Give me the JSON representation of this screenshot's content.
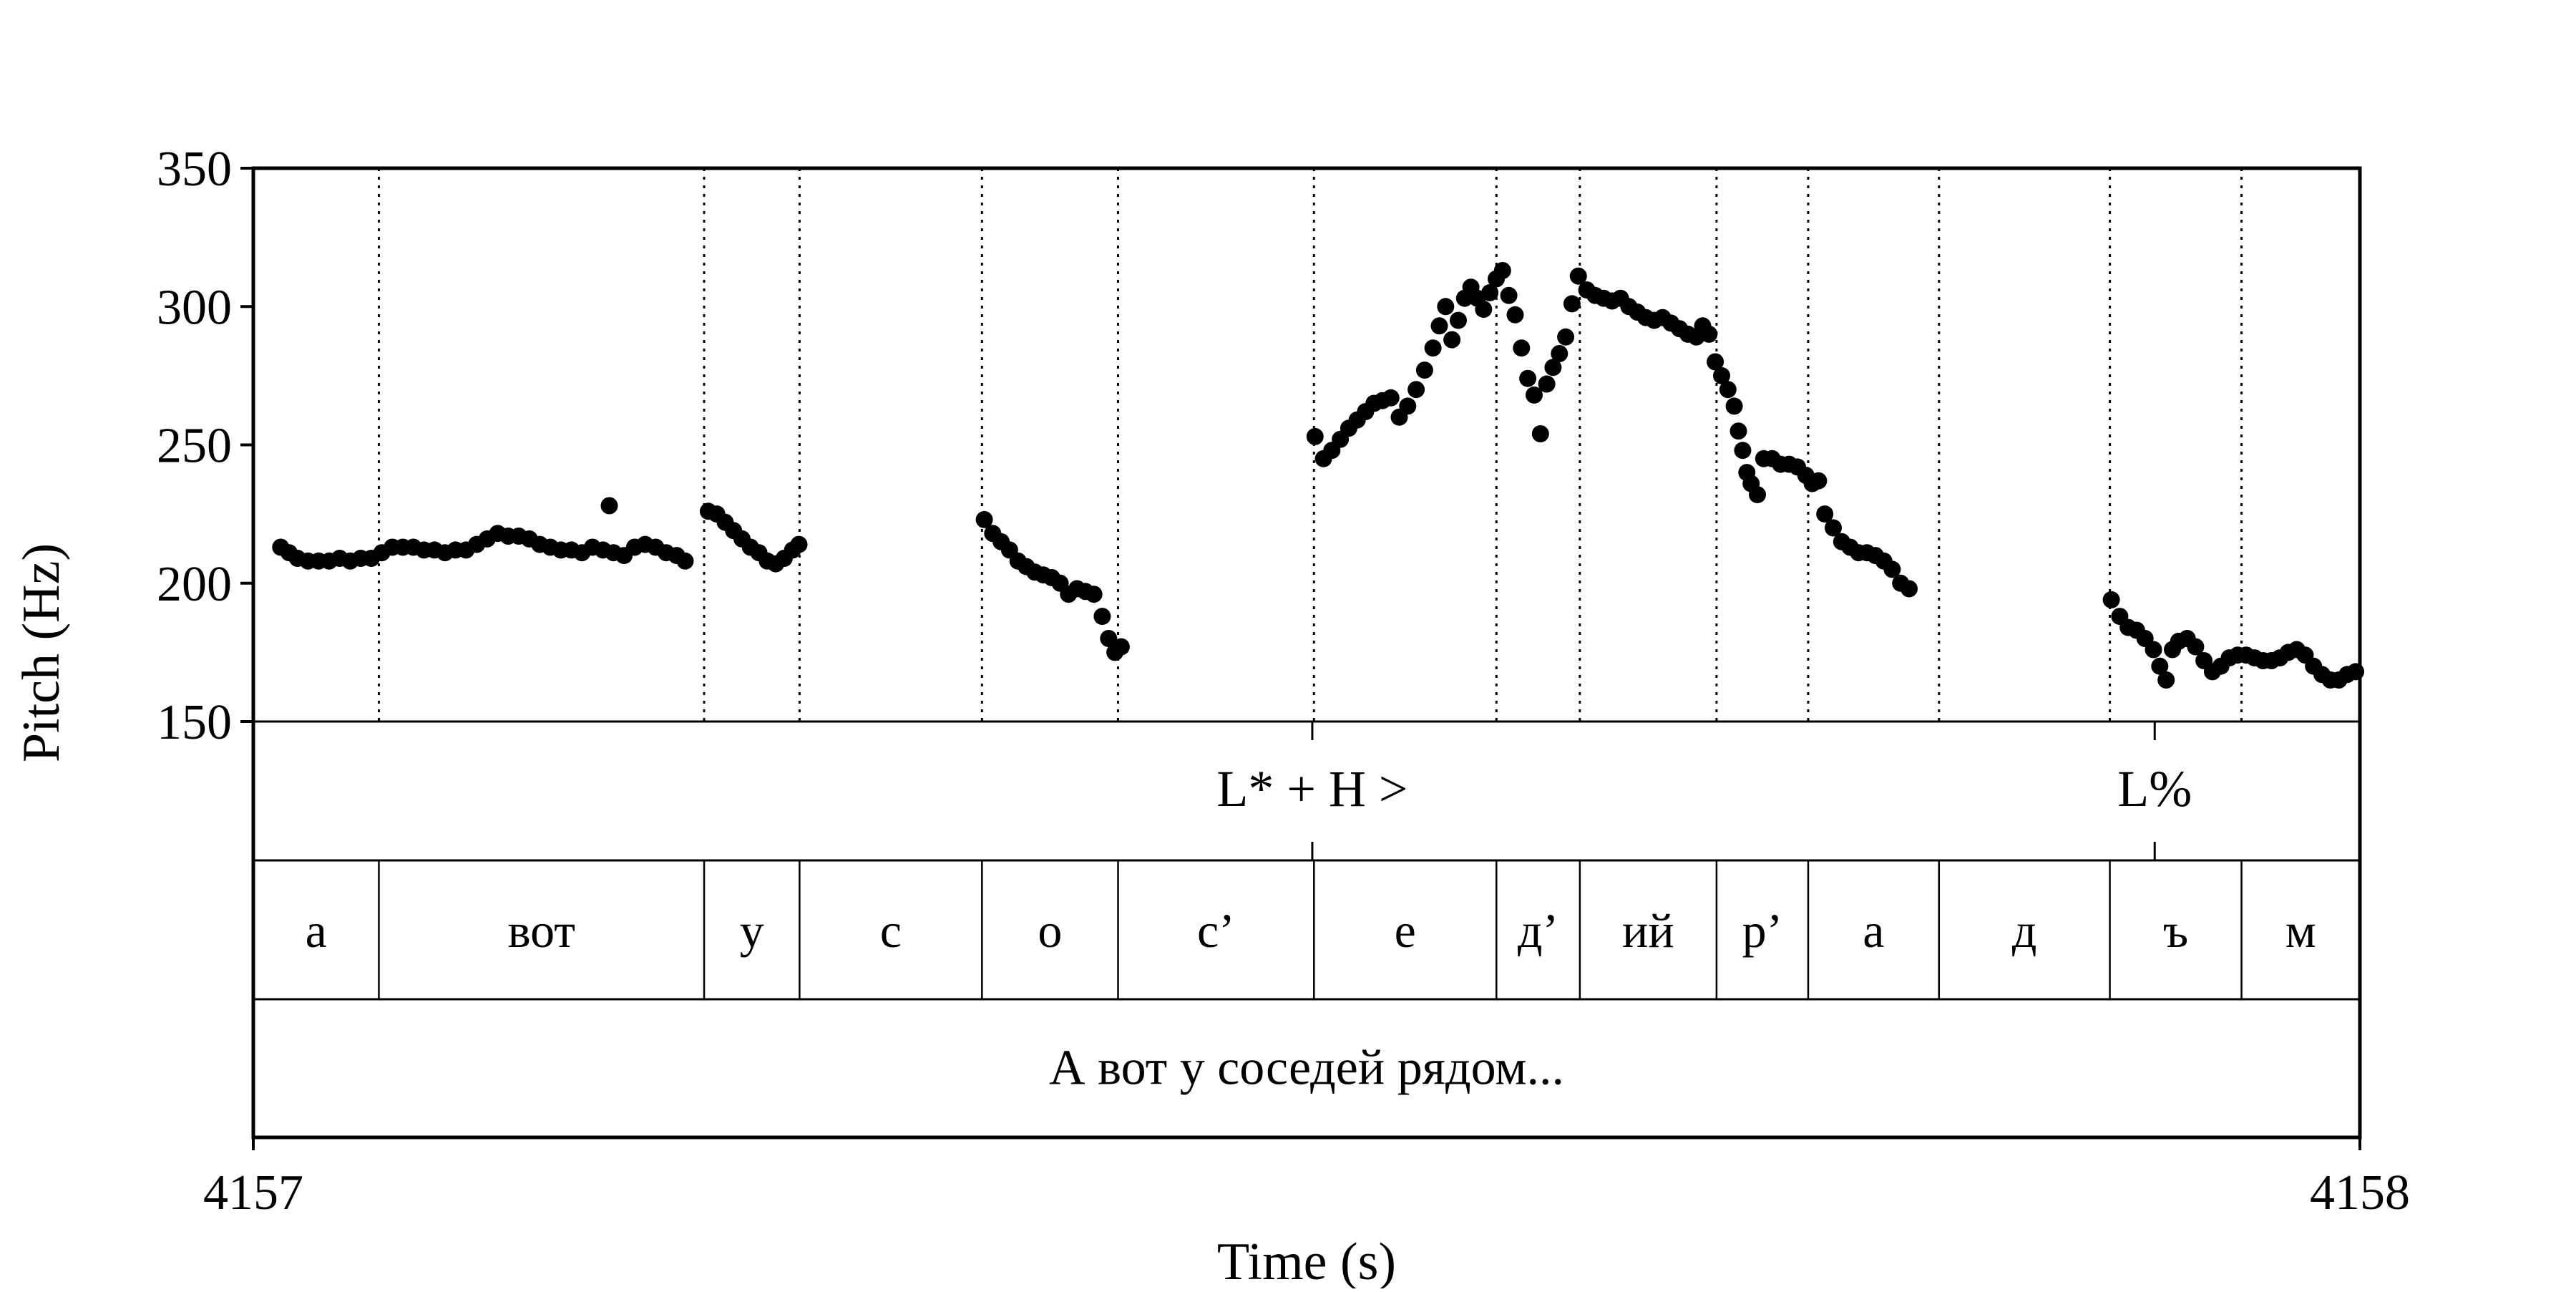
{
  "chart_data": {
    "type": "scatter",
    "title": "",
    "xlabel": "Time (s)",
    "ylabel": "Pitch (Hz)",
    "xlim": [
      4157,
      4158
    ],
    "ylim": [
      150,
      350
    ],
    "y_ticks": [
      "150",
      "200",
      "250",
      "300",
      "350"
    ],
    "x_ticks": [
      "4157",
      "4158"
    ],
    "grid": false,
    "tiers": {
      "tones": {
        "intervals": [
          {
            "start": 4157.0,
            "end": 4157.5027,
            "label": ""
          },
          {
            "start": 4157.5027,
            "end": 4157.9026,
            "label": "L* + H >"
          },
          {
            "start": 4157.9026,
            "end": 4158.0,
            "label": "L%"
          }
        ]
      },
      "segments": {
        "intervals": [
          {
            "start": 4157.0,
            "end": 4157.0596,
            "label": "а"
          },
          {
            "start": 4157.0596,
            "end": 4157.214,
            "label": "вот"
          },
          {
            "start": 4157.214,
            "end": 4157.2593,
            "label": "у"
          },
          {
            "start": 4157.2593,
            "end": 4157.3459,
            "label": "с"
          },
          {
            "start": 4157.3459,
            "end": 4157.4105,
            "label": "о"
          },
          {
            "start": 4157.4105,
            "end": 4157.5035,
            "label": "с’"
          },
          {
            "start": 4157.5035,
            "end": 4157.5901,
            "label": "е"
          },
          {
            "start": 4157.5901,
            "end": 4157.6297,
            "label": "д’"
          },
          {
            "start": 4157.6297,
            "end": 4157.6946,
            "label": "ий"
          },
          {
            "start": 4157.6946,
            "end": 4157.7381,
            "label": "р’"
          },
          {
            "start": 4157.7381,
            "end": 4157.8002,
            "label": "а"
          },
          {
            "start": 4157.8002,
            "end": 4157.8813,
            "label": "д"
          },
          {
            "start": 4157.8813,
            "end": 4157.9438,
            "label": "ъ"
          },
          {
            "start": 4157.9438,
            "end": 4158.0,
            "label": "м"
          }
        ]
      },
      "utterance": {
        "intervals": [
          {
            "start": 4157.0,
            "end": 4158.0,
            "label": "А вот у соседей рядом..."
          }
        ]
      }
    },
    "series": [
      {
        "points": [
          [
            4157.013,
            213
          ],
          [
            4157.017,
            211
          ],
          [
            4157.021,
            209
          ],
          [
            4157.026,
            208
          ],
          [
            4157.031,
            208
          ],
          [
            4157.036,
            208
          ],
          [
            4157.041,
            209
          ],
          [
            4157.046,
            208
          ],
          [
            4157.051,
            209
          ],
          [
            4157.056,
            209
          ],
          [
            4157.061,
            211
          ],
          [
            4157.066,
            213
          ],
          [
            4157.071,
            213
          ],
          [
            4157.076,
            213
          ],
          [
            4157.081,
            212
          ],
          [
            4157.086,
            212
          ],
          [
            4157.091,
            211
          ],
          [
            4157.096,
            212
          ],
          [
            4157.101,
            212
          ],
          [
            4157.106,
            214
          ],
          [
            4157.111,
            216
          ],
          [
            4157.116,
            218
          ],
          [
            4157.121,
            217
          ],
          [
            4157.126,
            217
          ],
          [
            4157.131,
            216
          ],
          [
            4157.136,
            214
          ],
          [
            4157.141,
            213
          ],
          [
            4157.146,
            212
          ],
          [
            4157.151,
            212
          ],
          [
            4157.156,
            211
          ],
          [
            4157.161,
            213
          ],
          [
            4157.166,
            212
          ],
          [
            4157.169,
            228
          ],
          [
            4157.171,
            211
          ],
          [
            4157.176,
            210
          ],
          [
            4157.181,
            213
          ],
          [
            4157.186,
            214
          ],
          [
            4157.191,
            213
          ],
          [
            4157.196,
            211
          ],
          [
            4157.201,
            210
          ],
          [
            4157.205,
            208
          ],
          [
            4157.216,
            226
          ],
          [
            4157.22,
            225
          ],
          [
            4157.224,
            222
          ],
          [
            4157.228,
            219
          ],
          [
            4157.232,
            216
          ],
          [
            4157.236,
            213
          ],
          [
            4157.24,
            211
          ],
          [
            4157.244,
            208
          ],
          [
            4157.248,
            207
          ],
          [
            4157.252,
            209
          ],
          [
            4157.256,
            212
          ],
          [
            4157.259,
            214
          ],
          [
            4157.347,
            223
          ],
          [
            4157.351,
            218
          ],
          [
            4157.355,
            215
          ],
          [
            4157.359,
            212
          ],
          [
            4157.363,
            208
          ],
          [
            4157.367,
            206
          ],
          [
            4157.371,
            204
          ],
          [
            4157.375,
            203
          ],
          [
            4157.379,
            202
          ],
          [
            4157.383,
            200
          ],
          [
            4157.387,
            196
          ],
          [
            4157.391,
            198
          ],
          [
            4157.395,
            197
          ],
          [
            4157.399,
            196
          ],
          [
            4157.403,
            188
          ],
          [
            4157.406,
            180
          ],
          [
            4157.409,
            175
          ],
          [
            4157.412,
            177
          ],
          [
            4157.504,
            253
          ],
          [
            4157.508,
            245
          ],
          [
            4157.512,
            248
          ],
          [
            4157.516,
            252
          ],
          [
            4157.52,
            256
          ],
          [
            4157.524,
            259
          ],
          [
            4157.528,
            262
          ],
          [
            4157.532,
            265
          ],
          [
            4157.536,
            266
          ],
          [
            4157.54,
            267
          ],
          [
            4157.544,
            260
          ],
          [
            4157.548,
            264
          ],
          [
            4157.552,
            270
          ],
          [
            4157.556,
            277
          ],
          [
            4157.56,
            285
          ],
          [
            4157.563,
            293
          ],
          [
            4157.566,
            300
          ],
          [
            4157.569,
            288
          ],
          [
            4157.572,
            295
          ],
          [
            4157.575,
            303
          ],
          [
            4157.578,
            307
          ],
          [
            4157.581,
            303
          ],
          [
            4157.584,
            299
          ],
          [
            4157.587,
            305
          ],
          [
            4157.59,
            310
          ],
          [
            4157.593,
            313
          ],
          [
            4157.596,
            304
          ],
          [
            4157.599,
            297
          ],
          [
            4157.602,
            285
          ],
          [
            4157.605,
            274
          ],
          [
            4157.608,
            268
          ],
          [
            4157.611,
            254
          ],
          [
            4157.614,
            272
          ],
          [
            4157.617,
            278
          ],
          [
            4157.62,
            283
          ],
          [
            4157.623,
            289
          ],
          [
            4157.626,
            301
          ],
          [
            4157.629,
            311
          ],
          [
            4157.633,
            306
          ],
          [
            4157.637,
            304
          ],
          [
            4157.641,
            303
          ],
          [
            4157.645,
            302
          ],
          [
            4157.649,
            303
          ],
          [
            4157.653,
            300
          ],
          [
            4157.657,
            298
          ],
          [
            4157.661,
            296
          ],
          [
            4157.665,
            295
          ],
          [
            4157.669,
            296
          ],
          [
            4157.673,
            294
          ],
          [
            4157.677,
            292
          ],
          [
            4157.681,
            290
          ],
          [
            4157.685,
            289
          ],
          [
            4157.688,
            293
          ],
          [
            4157.691,
            290
          ],
          [
            4157.694,
            280
          ],
          [
            4157.697,
            275
          ],
          [
            4157.7,
            270
          ],
          [
            4157.703,
            264
          ],
          [
            4157.705,
            255
          ],
          [
            4157.707,
            248
          ],
          [
            4157.709,
            240
          ],
          [
            4157.711,
            236
          ],
          [
            4157.714,
            232
          ],
          [
            4157.717,
            245
          ],
          [
            4157.721,
            245
          ],
          [
            4157.725,
            243
          ],
          [
            4157.729,
            243
          ],
          [
            4157.733,
            242
          ],
          [
            4157.737,
            239
          ],
          [
            4157.74,
            236
          ],
          [
            4157.743,
            237
          ],
          [
            4157.746,
            225
          ],
          [
            4157.75,
            220
          ],
          [
            4157.754,
            215
          ],
          [
            4157.758,
            213
          ],
          [
            4157.762,
            211
          ],
          [
            4157.766,
            211
          ],
          [
            4157.77,
            210
          ],
          [
            4157.774,
            208
          ],
          [
            4157.778,
            205
          ],
          [
            4157.782,
            200
          ],
          [
            4157.786,
            198
          ],
          [
            4157.882,
            194
          ],
          [
            4157.886,
            188
          ],
          [
            4157.89,
            184
          ],
          [
            4157.894,
            183
          ],
          [
            4157.898,
            180
          ],
          [
            4157.902,
            176
          ],
          [
            4157.905,
            170
          ],
          [
            4157.908,
            165
          ],
          [
            4157.911,
            176
          ],
          [
            4157.914,
            179
          ],
          [
            4157.918,
            180
          ],
          [
            4157.922,
            177
          ],
          [
            4157.926,
            172
          ],
          [
            4157.93,
            168
          ],
          [
            4157.934,
            170
          ],
          [
            4157.938,
            173
          ],
          [
            4157.942,
            174
          ],
          [
            4157.946,
            174
          ],
          [
            4157.95,
            173
          ],
          [
            4157.954,
            172
          ],
          [
            4157.958,
            172
          ],
          [
            4157.962,
            173
          ],
          [
            4157.966,
            175
          ],
          [
            4157.97,
            176
          ],
          [
            4157.974,
            174
          ],
          [
            4157.978,
            170
          ],
          [
            4157.982,
            167
          ],
          [
            4157.986,
            165
          ],
          [
            4157.99,
            165
          ],
          [
            4157.994,
            167
          ],
          [
            4157.998,
            168
          ]
        ]
      }
    ]
  }
}
